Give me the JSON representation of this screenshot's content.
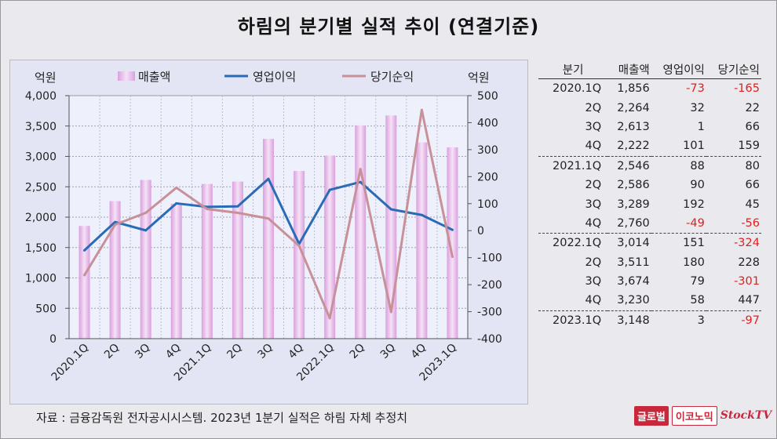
{
  "title": "하림의 분기별 실적 추이 (연결기준)",
  "source": "자료 : 금융감독원 전자공시시스템. 2023년 1분기 실적은 하림 자체 추정치",
  "logo": {
    "part1": "글로벌",
    "part2": "이코노믹",
    "part3": "StockTV"
  },
  "chart_data": {
    "type": "bar+line",
    "categories": [
      "2020.1Q",
      "2Q",
      "3Q",
      "4Q",
      "2021.1Q",
      "2Q",
      "3Q",
      "4Q",
      "2022.1Q",
      "2Q",
      "3Q",
      "4Q",
      "2023.1Q"
    ],
    "left_axis": {
      "unit": "억원",
      "ylim": [
        0,
        4000
      ],
      "ticks": [
        "0",
        "500",
        "1,000",
        "1,500",
        "2,000",
        "2,500",
        "3,000",
        "3,500",
        "4,000"
      ]
    },
    "right_axis": {
      "unit": "억원",
      "ylim": [
        -400,
        500
      ],
      "ticks": [
        "-400",
        "-300",
        "-200",
        "-100",
        "0",
        "100",
        "200",
        "300",
        "400",
        "500"
      ]
    },
    "series": [
      {
        "name": "매출액",
        "axis": "left",
        "type": "bar",
        "color": "#e0a8e4",
        "values": [
          1856,
          2264,
          2613,
          2222,
          2546,
          2586,
          3289,
          2760,
          3014,
          3511,
          3674,
          3230,
          3148
        ]
      },
      {
        "name": "영업이익",
        "axis": "right",
        "type": "line",
        "color": "#2a6bb5",
        "values": [
          -73,
          32,
          1,
          101,
          88,
          90,
          192,
          -49,
          151,
          180,
          79,
          58,
          3
        ]
      },
      {
        "name": "당기순익",
        "axis": "right",
        "type": "line",
        "color": "#c89098",
        "values": [
          -165,
          22,
          66,
          159,
          80,
          66,
          45,
          -56,
          -324,
          228,
          -301,
          447,
          -97
        ]
      }
    ],
    "grid": true,
    "legend": "top"
  },
  "table": {
    "headers": [
      "분기",
      "매출액",
      "영업이익",
      "당기순익"
    ],
    "rows": [
      {
        "period": "2020.1Q",
        "sales": "1,856",
        "op": "-73",
        "net": "-165"
      },
      {
        "period": "2Q",
        "sales": "2,264",
        "op": "32",
        "net": "22"
      },
      {
        "period": "3Q",
        "sales": "2,613",
        "op": "1",
        "net": "66"
      },
      {
        "period": "4Q",
        "sales": "2,222",
        "op": "101",
        "net": "159"
      },
      {
        "period": "2021.1Q",
        "sales": "2,546",
        "op": "88",
        "net": "80"
      },
      {
        "period": "2Q",
        "sales": "2,586",
        "op": "90",
        "net": "66"
      },
      {
        "period": "3Q",
        "sales": "3,289",
        "op": "192",
        "net": "45"
      },
      {
        "period": "4Q",
        "sales": "2,760",
        "op": "-49",
        "net": "-56"
      },
      {
        "period": "2022.1Q",
        "sales": "3,014",
        "op": "151",
        "net": "-324"
      },
      {
        "period": "2Q",
        "sales": "3,511",
        "op": "180",
        "net": "228"
      },
      {
        "period": "3Q",
        "sales": "3,674",
        "op": "79",
        "net": "-301"
      },
      {
        "period": "4Q",
        "sales": "3,230",
        "op": "58",
        "net": "447"
      },
      {
        "period": "2023.1Q",
        "sales": "3,148",
        "op": "3",
        "net": "-97"
      }
    ]
  }
}
